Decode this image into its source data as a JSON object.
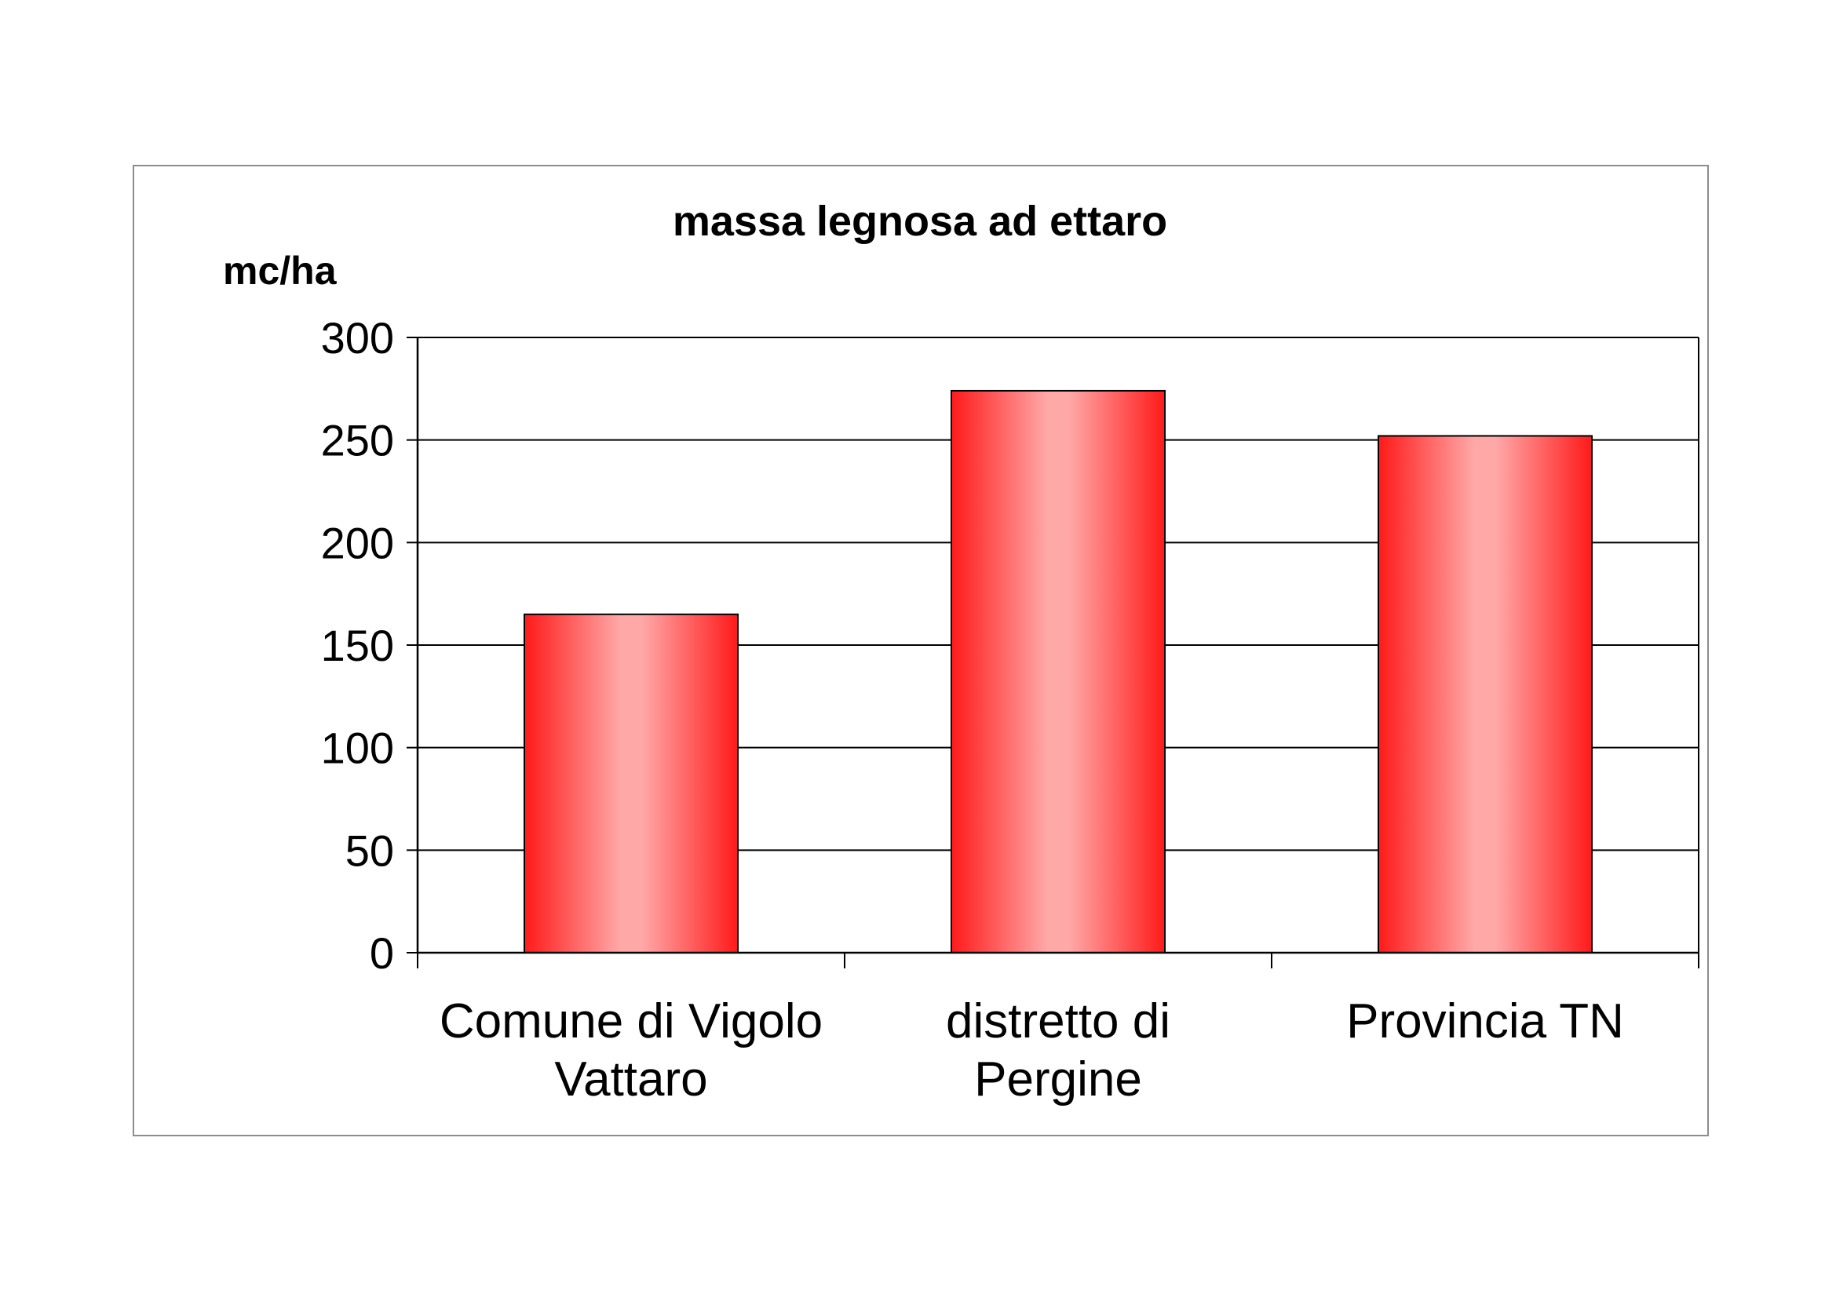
{
  "chart_data": {
    "type": "bar",
    "title": "massa legnosa ad ettaro",
    "ylabel": "mc/ha",
    "xlabel": "",
    "categories": [
      [
        "Comune di Vigolo",
        "Vattaro"
      ],
      [
        "distretto di",
        "Pergine"
      ],
      [
        "Provincia TN"
      ]
    ],
    "values": [
      165,
      274,
      252
    ],
    "ylim": [
      0,
      300
    ],
    "yticks": [
      "0",
      "50",
      "100",
      "150",
      "200",
      "250",
      "300"
    ],
    "grid": true,
    "legend": "none",
    "bar_color": "#ff1a1a",
    "bar_highlight_color": "#ffa8a8"
  }
}
